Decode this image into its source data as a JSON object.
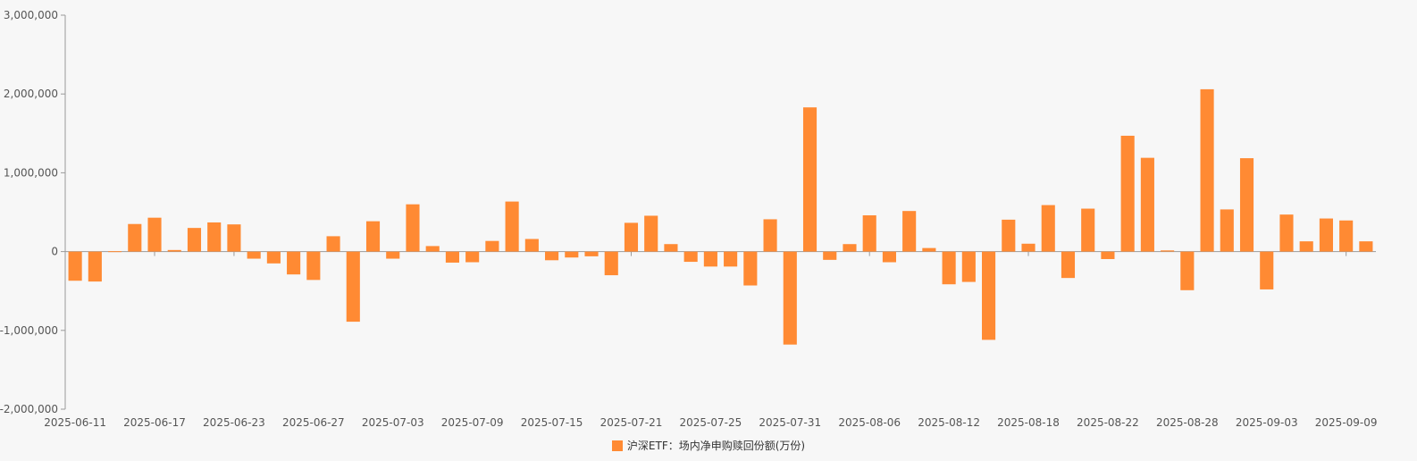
{
  "chart_data": {
    "type": "bar",
    "color": "#ff8a33",
    "legend_position": "bottom-center",
    "grid": false,
    "ylim": [
      -2000000,
      3000000
    ],
    "y_ticks": [
      "3,000,000",
      "2,000,000",
      "1,000,000",
      "0",
      "-1,000,000",
      "-2,000,000"
    ],
    "y_tick_values": [
      3000000,
      2000000,
      1000000,
      0,
      -1000000,
      -2000000
    ],
    "x_tick_labels": [
      "2025-06-11",
      "2025-06-17",
      "2025-06-23",
      "2025-06-27",
      "2025-07-03",
      "2025-07-09",
      "2025-07-15",
      "2025-07-21",
      "2025-07-25",
      "2025-07-31",
      "2025-08-06",
      "2025-08-12",
      "2025-08-18",
      "2025-08-22",
      "2025-08-28",
      "2025-09-03",
      "2025-09-09"
    ],
    "categories": [
      "2025-06-11",
      "2025-06-12",
      "2025-06-13",
      "2025-06-16",
      "2025-06-17",
      "2025-06-18",
      "2025-06-19",
      "2025-06-20",
      "2025-06-23",
      "2025-06-24",
      "2025-06-25",
      "2025-06-26",
      "2025-06-27",
      "2025-06-30",
      "2025-07-01",
      "2025-07-02",
      "2025-07-03",
      "2025-07-04",
      "2025-07-07",
      "2025-07-08",
      "2025-07-09",
      "2025-07-10",
      "2025-07-11",
      "2025-07-14",
      "2025-07-15",
      "2025-07-16",
      "2025-07-17",
      "2025-07-18",
      "2025-07-21",
      "2025-07-22",
      "2025-07-23",
      "2025-07-24",
      "2025-07-25",
      "2025-07-28",
      "2025-07-29",
      "2025-07-30",
      "2025-07-31",
      "2025-08-01",
      "2025-08-04",
      "2025-08-05",
      "2025-08-06",
      "2025-08-07",
      "2025-08-08",
      "2025-08-11",
      "2025-08-12",
      "2025-08-13",
      "2025-08-14",
      "2025-08-15",
      "2025-08-18",
      "2025-08-19",
      "2025-08-20",
      "2025-08-21",
      "2025-08-22",
      "2025-08-25",
      "2025-08-26",
      "2025-08-27",
      "2025-08-28",
      "2025-08-29",
      "2025-09-01",
      "2025-09-02",
      "2025-09-03",
      "2025-09-04",
      "2025-09-05",
      "2025-09-08",
      "2025-09-09",
      "2025-09-10"
    ],
    "series": [
      {
        "name": "沪深ETF：场内净申购赎回份额(万份)",
        "values": [
          -370000,
          -380000,
          5000,
          350000,
          430000,
          20000,
          300000,
          370000,
          345000,
          -90000,
          -150000,
          -290000,
          -360000,
          195000,
          -890000,
          385000,
          -90000,
          600000,
          70000,
          -140000,
          -135000,
          135000,
          635000,
          160000,
          -110000,
          -75000,
          -60000,
          -300000,
          365000,
          455000,
          95000,
          -130000,
          -190000,
          -190000,
          -430000,
          410000,
          -1180000,
          1830000,
          -105000,
          95000,
          460000,
          -135000,
          515000,
          45000,
          -415000,
          -385000,
          -1120000,
          405000,
          100000,
          590000,
          -335000,
          545000,
          -95000,
          1470000,
          1190000,
          15000,
          -490000,
          2060000,
          535000,
          1185000,
          -480000,
          470000,
          130000,
          420000,
          395000,
          130000
        ]
      }
    ]
  }
}
